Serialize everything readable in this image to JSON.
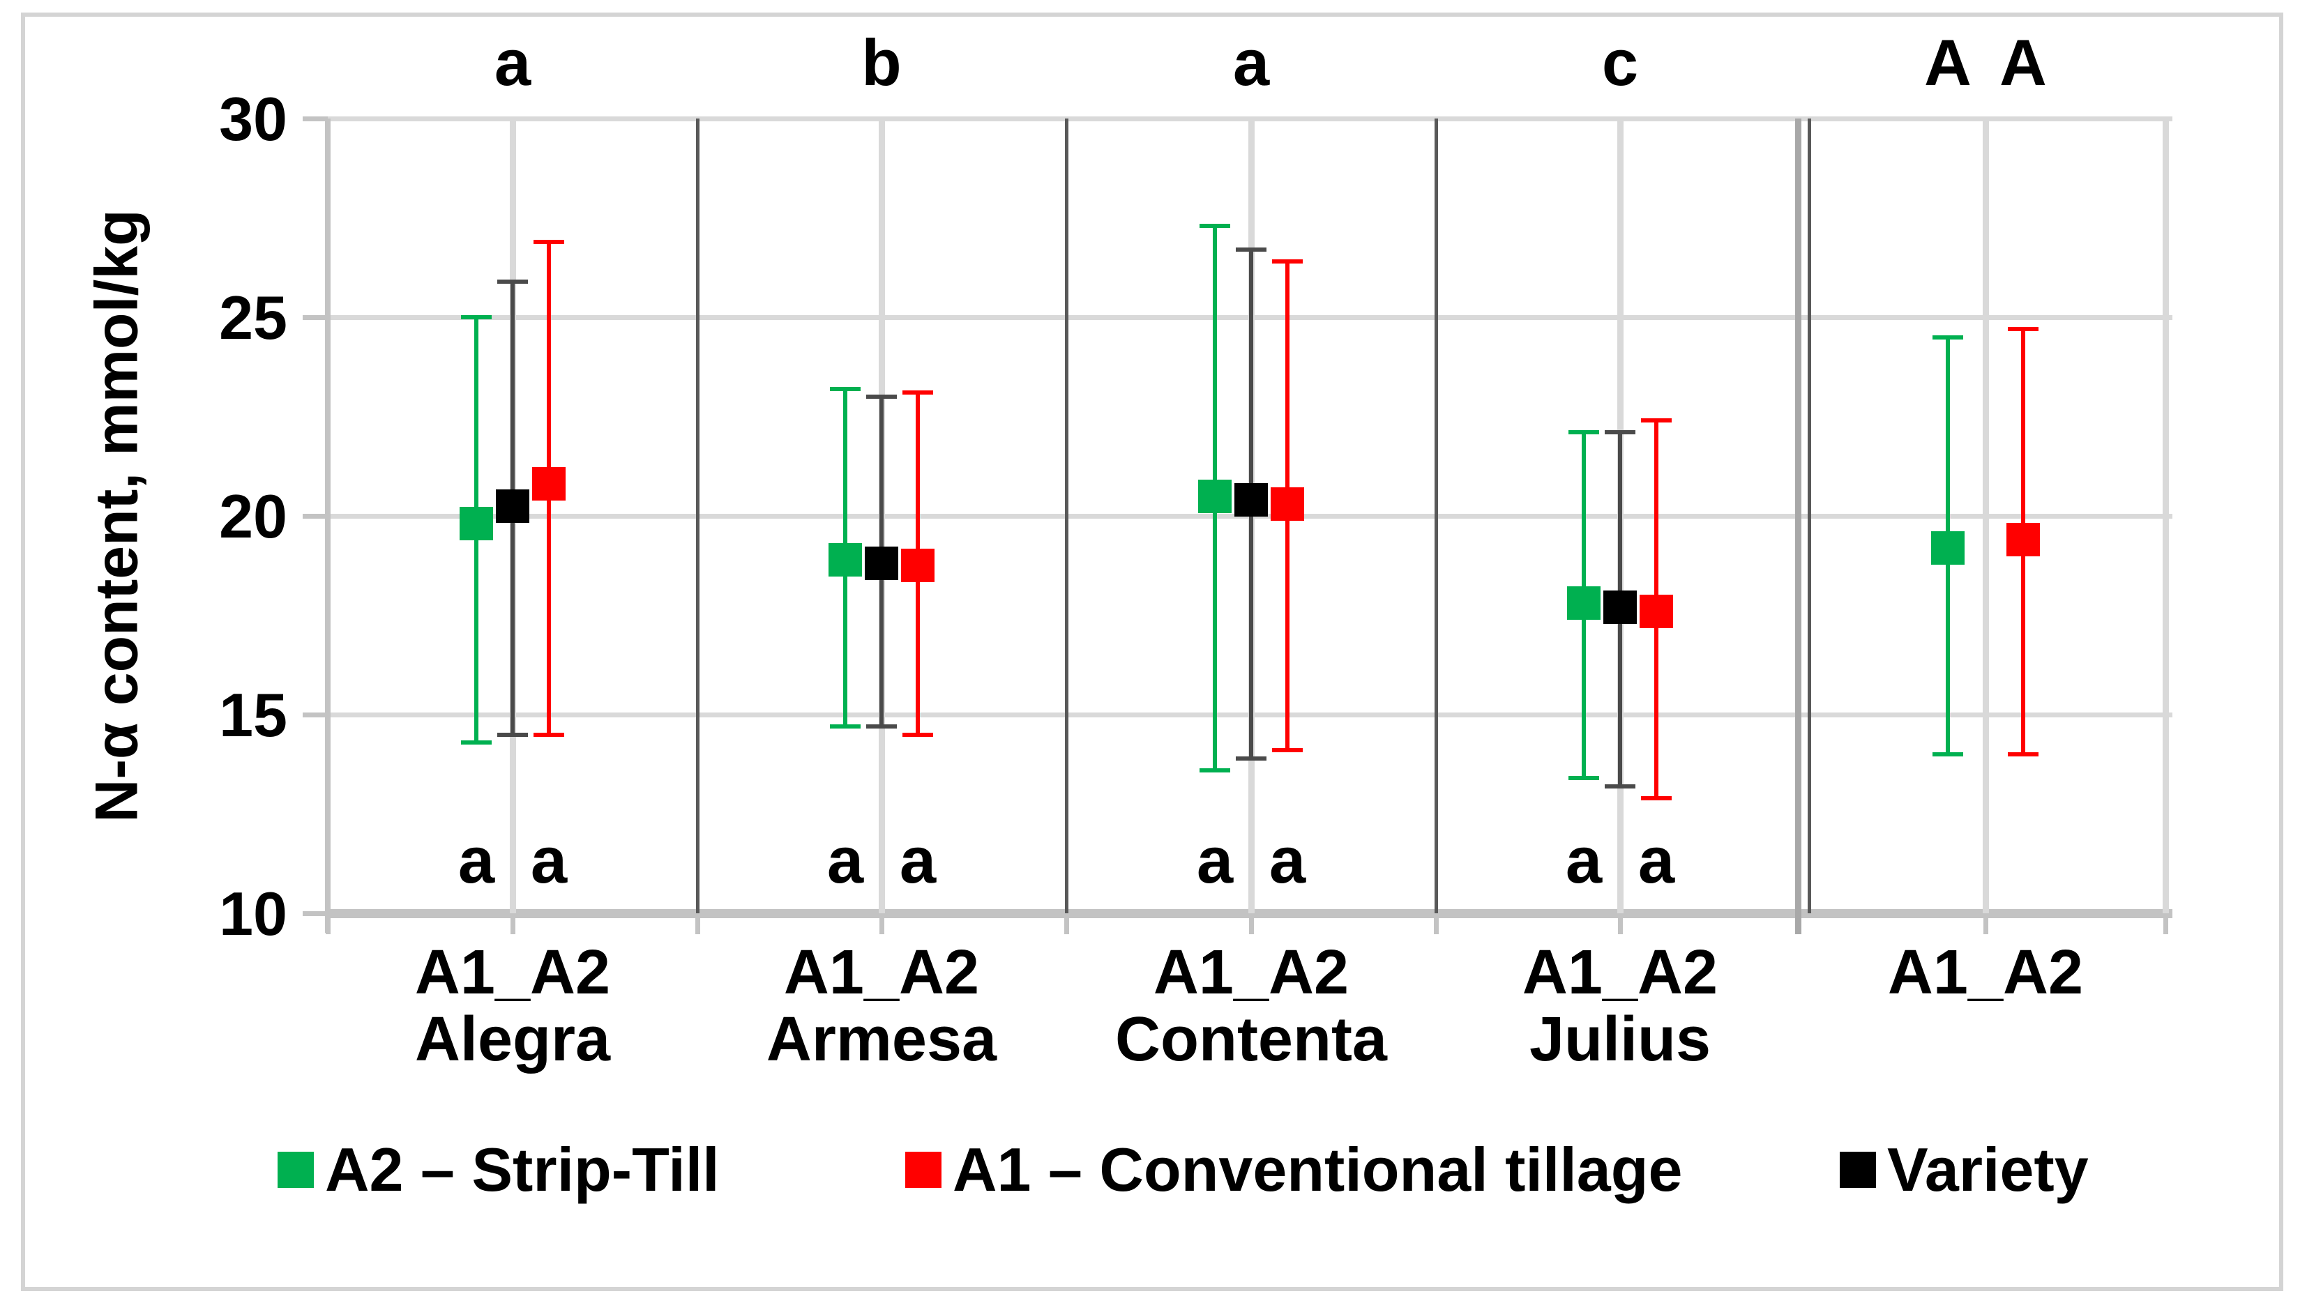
{
  "figure": {
    "description": "Error-bar scatter chart of N-alpha content by winter wheat variety and tillage system",
    "y_axis": {
      "title": "N-α content, mmol/kg",
      "tick_labels": [
        "30",
        "25",
        "20",
        "15",
        "10"
      ],
      "min": 10,
      "max": 30
    },
    "legend": {
      "items": [
        {
          "label": "A2 – Strip-Till",
          "color": "#00B050"
        },
        {
          "label": "A1 – Conventional tillage",
          "color": "#FF0000"
        },
        {
          "label": "Variety",
          "color": "#000000"
        }
      ]
    },
    "chart_data": {
      "type": "scatter",
      "title": "",
      "xlabel": "",
      "ylabel": "N-α content, mmol/kg",
      "ylim": [
        10,
        30
      ],
      "yticks": [
        30,
        25,
        20,
        15,
        10
      ],
      "grid": true,
      "legend_position": "bottom",
      "series_names": [
        "A2 – Strip-Till",
        "Variety",
        "A1 – Conventional tillage"
      ],
      "colors": {
        "A2": "#00B050",
        "Variety": "#000000",
        "A1": "#FF0000"
      },
      "error_line_colors": {
        "A2": "#00B050",
        "Variety": "#4a4a4a",
        "A1": "#FF0000"
      },
      "groups": [
        {
          "x_label": "A1_A2",
          "variety": "Alegra",
          "top_letter": "a",
          "points": [
            {
              "series": "A2 – Strip-Till",
              "key": "A2",
              "value": 19.8,
              "err_high": 25.0,
              "err_low": 14.3,
              "bottom_letter": "a"
            },
            {
              "series": "Variety",
              "key": "Variety",
              "value": 20.25,
              "err_high": 25.9,
              "err_low": 14.5
            },
            {
              "series": "A1 – Conventional tillage",
              "key": "A1",
              "value": 20.8,
              "err_high": 26.9,
              "err_low": 14.5,
              "bottom_letter": "a"
            }
          ]
        },
        {
          "x_label": "A1_A2",
          "variety": "Armesa",
          "top_letter": "b",
          "points": [
            {
              "series": "A2 – Strip-Till",
              "key": "A2",
              "value": 18.9,
              "err_high": 23.2,
              "err_low": 14.7,
              "bottom_letter": "a"
            },
            {
              "series": "Variety",
              "key": "Variety",
              "value": 18.8,
              "err_high": 23.0,
              "err_low": 14.7
            },
            {
              "series": "A1 – Conventional tillage",
              "key": "A1",
              "value": 18.75,
              "err_high": 23.1,
              "err_low": 14.5,
              "bottom_letter": "a"
            }
          ]
        },
        {
          "x_label": "A1_A2",
          "variety": "Contenta",
          "top_letter": "a",
          "points": [
            {
              "series": "A2 – Strip-Till",
              "key": "A2",
              "value": 20.5,
              "err_high": 27.3,
              "err_low": 13.6,
              "bottom_letter": "a"
            },
            {
              "series": "Variety",
              "key": "Variety",
              "value": 20.4,
              "err_high": 26.7,
              "err_low": 13.9
            },
            {
              "series": "A1 – Conventional tillage",
              "key": "A1",
              "value": 20.3,
              "err_high": 26.4,
              "err_low": 14.1,
              "bottom_letter": "a"
            }
          ]
        },
        {
          "x_label": "A1_A2",
          "variety": "Julius",
          "top_letter": "c",
          "points": [
            {
              "series": "A2 – Strip-Till",
              "key": "A2",
              "value": 17.8,
              "err_high": 22.1,
              "err_low": 13.4,
              "bottom_letter": "a"
            },
            {
              "series": "Variety",
              "key": "Variety",
              "value": 17.7,
              "err_high": 22.1,
              "err_low": 13.2
            },
            {
              "series": "A1 – Conventional tillage",
              "key": "A1",
              "value": 17.6,
              "err_high": 22.4,
              "err_low": 12.9,
              "bottom_letter": "a"
            }
          ]
        },
        {
          "x_label": "A1_A2",
          "variety": "",
          "points": [
            {
              "series": "A2 – Strip-Till",
              "key": "A2",
              "value": 19.2,
              "err_high": 24.5,
              "err_low": 14.0,
              "top_letter": "A"
            },
            {
              "series": "A1 – Conventional tillage",
              "key": "A1",
              "value": 19.4,
              "err_high": 24.7,
              "err_low": 14.0,
              "top_letter": "A"
            }
          ]
        }
      ]
    }
  }
}
